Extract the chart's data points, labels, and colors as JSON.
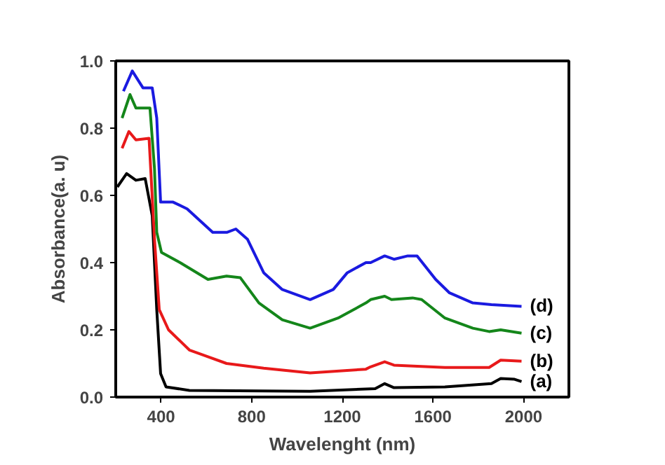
{
  "chart_data": {
    "type": "line",
    "xlabel": "Wavelenght (nm)",
    "ylabel": "Absorbance(a. u)",
    "xlim": [
      200,
      2200
    ],
    "xticks": [
      400,
      800,
      1200,
      1600,
      2000
    ],
    "ylim": [
      0,
      1.0
    ],
    "yticks": [
      {
        "value": 0,
        "label": "0.0"
      },
      {
        "value": 0.2,
        "label": "0.2"
      },
      {
        "value": 0.4,
        "label": "0.4"
      },
      {
        "value": 0.6,
        "label": "0.6"
      },
      {
        "value": 0.8,
        "label": "0.8"
      },
      {
        "value": 1.0,
        "label": "1.0"
      }
    ],
    "grid": false,
    "legend": false,
    "line_style": "solid",
    "marker": "none",
    "series": [
      {
        "name": "(a)",
        "color": "#000000",
        "x": [
          207,
          248,
          289,
          330,
          361,
          381,
          398,
          422,
          525,
          1058,
          1345,
          1387,
          1428,
          1653,
          1858,
          1899,
          1960,
          1991
        ],
        "values": [
          0.625,
          0.665,
          0.645,
          0.65,
          0.54,
          0.26,
          0.07,
          0.03,
          0.02,
          0.017,
          0.025,
          0.04,
          0.028,
          0.03,
          0.04,
          0.055,
          0.053,
          0.046
        ]
      },
      {
        "name": "(b)",
        "color": "#e8191a",
        "x": [
          228,
          258,
          289,
          347,
          371,
          392,
          433,
          525,
          689,
          853,
          1058,
          1304,
          1325,
          1387,
          1428,
          1653,
          1848,
          1899,
          1991
        ],
        "values": [
          0.74,
          0.79,
          0.765,
          0.77,
          0.47,
          0.26,
          0.2,
          0.14,
          0.1,
          0.086,
          0.072,
          0.083,
          0.09,
          0.105,
          0.095,
          0.088,
          0.088,
          0.11,
          0.107
        ]
      },
      {
        "name": "(c)",
        "color": "#14861a",
        "x": [
          228,
          263,
          289,
          351,
          371,
          381,
          402,
          484,
          607,
          689,
          750,
          832,
          935,
          1058,
          1181,
          1304,
          1325,
          1387,
          1417,
          1510,
          1550,
          1653,
          1776,
          1848,
          1899,
          1991
        ],
        "values": [
          0.83,
          0.9,
          0.86,
          0.86,
          0.68,
          0.49,
          0.43,
          0.4,
          0.35,
          0.36,
          0.355,
          0.28,
          0.23,
          0.205,
          0.235,
          0.28,
          0.29,
          0.3,
          0.29,
          0.295,
          0.29,
          0.235,
          0.205,
          0.195,
          0.2,
          0.19
        ]
      },
      {
        "name": "(d)",
        "color": "#1a1ae0",
        "x": [
          234,
          273,
          320,
          361,
          381,
          398,
          453,
          515,
          628,
          690,
          730,
          781,
          853,
          935,
          1058,
          1160,
          1222,
          1304,
          1325,
          1387,
          1428,
          1489,
          1530,
          1612,
          1673,
          1776,
          1858,
          1991
        ],
        "values": [
          0.91,
          0.97,
          0.92,
          0.92,
          0.83,
          0.58,
          0.58,
          0.56,
          0.49,
          0.49,
          0.5,
          0.47,
          0.37,
          0.32,
          0.29,
          0.32,
          0.37,
          0.4,
          0.4,
          0.42,
          0.41,
          0.42,
          0.42,
          0.35,
          0.31,
          0.28,
          0.275,
          0.27
        ]
      }
    ]
  }
}
